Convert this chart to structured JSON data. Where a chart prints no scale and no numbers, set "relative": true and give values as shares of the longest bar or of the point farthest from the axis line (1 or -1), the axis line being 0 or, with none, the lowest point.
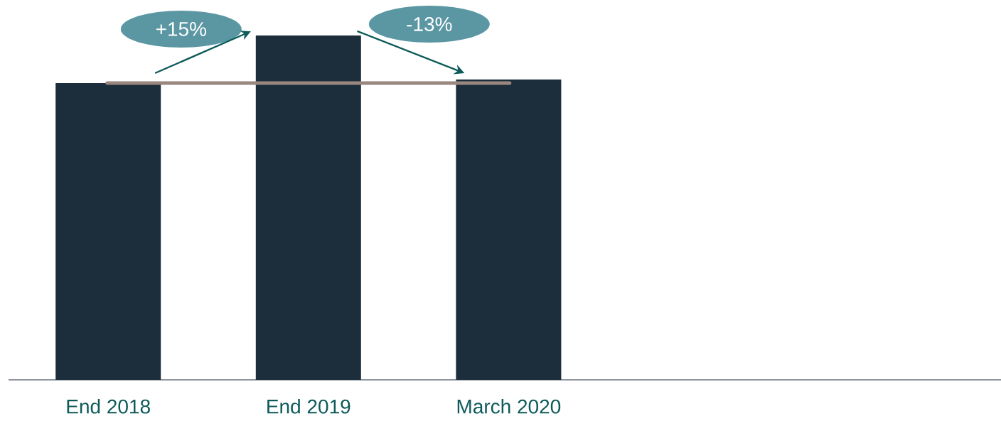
{
  "chart_data": {
    "type": "bar",
    "relative": true,
    "categories": [
      "End 2018",
      "End 2019",
      "March 2020"
    ],
    "values": [
      0.862,
      1,
      0.872
    ],
    "color": "#1c2d3b",
    "ref_lines": [
      {
        "axis": "y",
        "value": 0.862,
        "color": "#9a8880"
      }
    ],
    "annotations": [
      "+15%",
      "-13%"
    ]
  }
}
